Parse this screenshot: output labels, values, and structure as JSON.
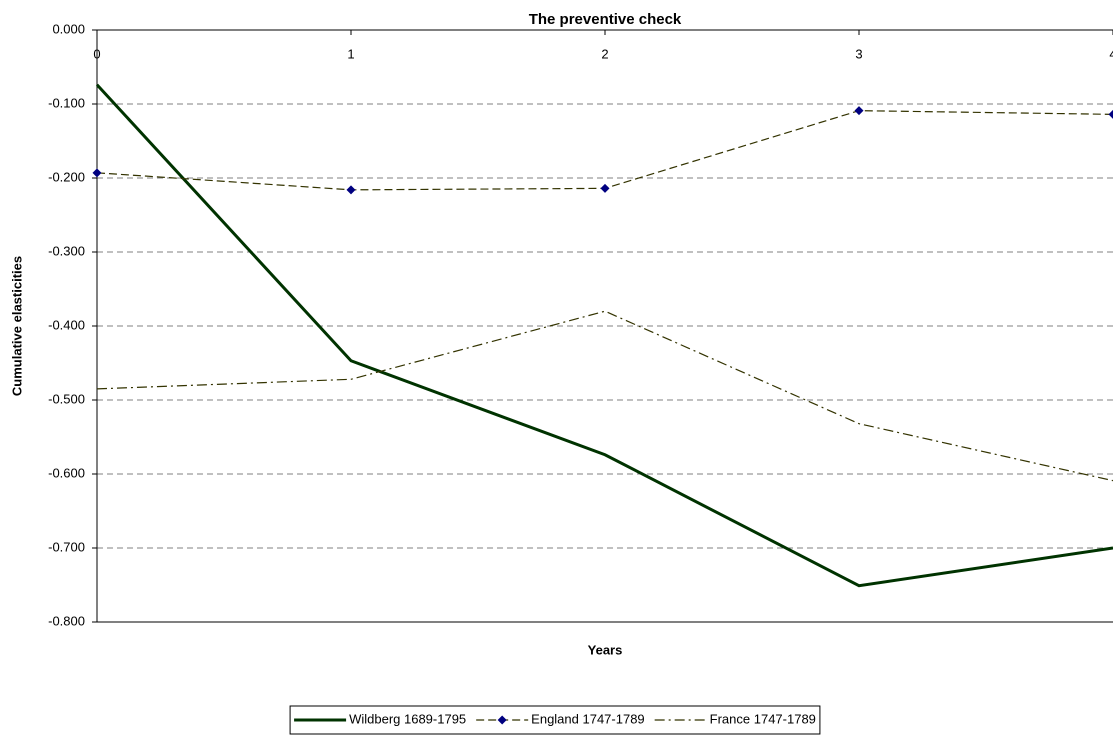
{
  "chart_data": {
    "type": "line",
    "title": "The preventive check",
    "x_label": "Years",
    "y_label": "Cumulative elasticities",
    "x": [
      0,
      1,
      2,
      3,
      4
    ],
    "xlim": [
      0,
      4
    ],
    "xticks": [
      0,
      1,
      2,
      3,
      4
    ],
    "ylim": [
      -0.8,
      0
    ],
    "yticks": [
      {
        "value": 0,
        "label": "0.000"
      },
      {
        "value": -0.1,
        "label": "-0.100"
      },
      {
        "value": -0.2,
        "label": "-0.200"
      },
      {
        "value": -0.3,
        "label": "-0.300"
      },
      {
        "value": -0.4,
        "label": "-0.400"
      },
      {
        "value": -0.5,
        "label": "-0.500"
      },
      {
        "value": -0.6,
        "label": "-0.600"
      },
      {
        "value": -0.7,
        "label": "-0.700"
      },
      {
        "value": -0.8,
        "label": "-0.800"
      }
    ],
    "grid": true,
    "legend": "bottom",
    "series": [
      {
        "name": "Wildberg 1689-1795",
        "color": "#003300",
        "line_style": "solid",
        "values": [
          -0.074,
          -0.447,
          -0.574,
          -0.751,
          -0.7
        ]
      },
      {
        "name": "England 1747-1789",
        "color": "#333300",
        "line_style": "dashed",
        "marker": "diamond",
        "marker_color": "#000080",
        "values": [
          -0.193,
          -0.216,
          -0.214,
          -0.109,
          -0.114
        ]
      },
      {
        "name": "France 1747-1789",
        "color": "#333300",
        "line_style": "dashdot",
        "values": [
          -0.485,
          -0.472,
          -0.38,
          -0.532,
          -0.609
        ]
      }
    ]
  }
}
